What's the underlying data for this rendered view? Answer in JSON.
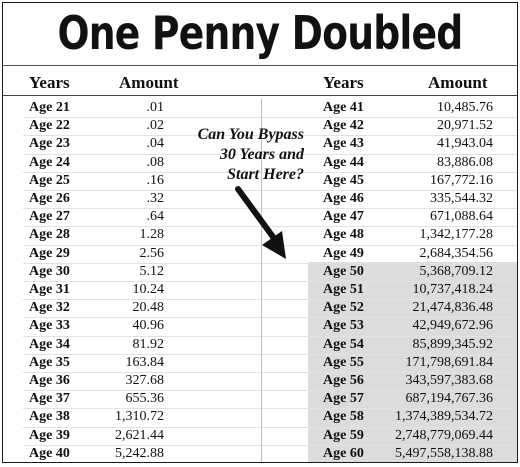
{
  "title": "One Penny Doubled",
  "headers": {
    "years": "Years",
    "amount": "Amount"
  },
  "callout": {
    "lines": [
      "Can You Bypass",
      "30 Years and",
      "Start Here?"
    ]
  },
  "highlight_color": "#dcdcdc",
  "table": {
    "left": [
      {
        "age": "Age 21",
        "amount": ".01"
      },
      {
        "age": "Age 22",
        "amount": ".02"
      },
      {
        "age": "Age 23",
        "amount": ".04"
      },
      {
        "age": "Age 24",
        "amount": ".08"
      },
      {
        "age": "Age 25",
        "amount": ".16"
      },
      {
        "age": "Age 26",
        "amount": ".32"
      },
      {
        "age": "Age 27",
        "amount": ".64"
      },
      {
        "age": "Age 28",
        "amount": "1.28"
      },
      {
        "age": "Age 29",
        "amount": "2.56"
      },
      {
        "age": "Age 30",
        "amount": "5.12"
      },
      {
        "age": "Age 31",
        "amount": "10.24"
      },
      {
        "age": "Age 32",
        "amount": "20.48"
      },
      {
        "age": "Age 33",
        "amount": "40.96"
      },
      {
        "age": "Age 34",
        "amount": "81.92"
      },
      {
        "age": "Age 35",
        "amount": "163.84"
      },
      {
        "age": "Age 36",
        "amount": "327.68"
      },
      {
        "age": "Age 37",
        "amount": "655.36"
      },
      {
        "age": "Age 38",
        "amount": "1,310.72"
      },
      {
        "age": "Age 39",
        "amount": "2,621.44"
      },
      {
        "age": "Age 40",
        "amount": "5,242.88"
      }
    ],
    "right": [
      {
        "age": "Age 41",
        "amount": "10,485.76"
      },
      {
        "age": "Age 42",
        "amount": "20,971.52"
      },
      {
        "age": "Age 43",
        "amount": "41,943.04"
      },
      {
        "age": "Age 44",
        "amount": "83,886.08"
      },
      {
        "age": "Age 45",
        "amount": "167,772.16"
      },
      {
        "age": "Age 46",
        "amount": "335,544.32"
      },
      {
        "age": "Age 47",
        "amount": "671,088.64"
      },
      {
        "age": "Age 48",
        "amount": "1,342,177.28"
      },
      {
        "age": "Age 49",
        "amount": "2,684,354.56"
      },
      {
        "age": "Age 50",
        "amount": "5,368,709.12"
      },
      {
        "age": "Age 51",
        "amount": "10,737,418.24"
      },
      {
        "age": "Age 52",
        "amount": "21,474,836.48"
      },
      {
        "age": "Age 53",
        "amount": "42,949,672.96"
      },
      {
        "age": "Age 54",
        "amount": "85,899,345.92"
      },
      {
        "age": "Age 55",
        "amount": "171,798,691.84"
      },
      {
        "age": "Age 56",
        "amount": "343,597,383.68"
      },
      {
        "age": "Age 57",
        "amount": "687,194,767.36"
      },
      {
        "age": "Age 58",
        "amount": "1,374,389,534.72"
      },
      {
        "age": "Age 59",
        "amount": "2,748,779,069.44"
      },
      {
        "age": "Age 60",
        "amount": "5,497,558,138.88"
      }
    ]
  }
}
